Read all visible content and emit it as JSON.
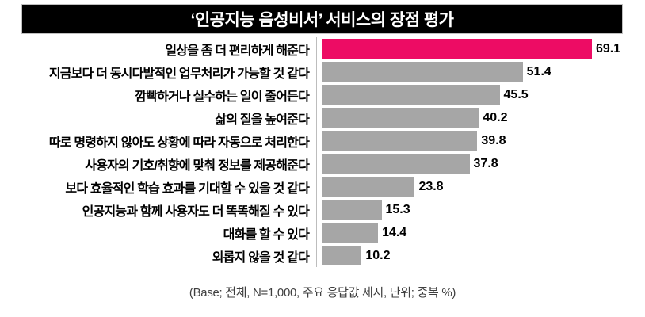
{
  "chart_data": {
    "type": "bar",
    "orientation": "horizontal",
    "title": "‘인공지능 음성비서’ 서비스의 장점 평가",
    "categories": [
      "일상을 좀 더 편리하게 해준다",
      "지금보다 더 동시다발적인 업무처리가 가능할 것 같다",
      "깜빡하거나 실수하는 일이 줄어든다",
      "삶의 질을 높여준다",
      "따로 명령하지 않아도 상황에 따라 자동으로 처리한다",
      "사용자의 기호/취향에 맞춰 정보를 제공해준다",
      "보다 효율적인 학습 효과를 기대할 수 있을 것 같다",
      "인공지능과 함께 사용자도 더 똑똑해질 수 있다",
      "대화를 할 수 있다",
      "외롭지 않을 것 같다"
    ],
    "values": [
      69.1,
      51.4,
      45.5,
      40.2,
      39.8,
      37.8,
      23.8,
      15.3,
      14.4,
      10.2
    ],
    "highlight_index": 0,
    "value_labels": true,
    "legend": false,
    "grid": false,
    "xlim": [
      0,
      82.7
    ],
    "footnote": "(Base; 전체, N=1,000, 주요 응답값 제시, 단위; 중복 %)",
    "colors": {
      "highlight": "#ED0C64",
      "default": "#A6A6A6",
      "title_bg": "#000000",
      "title_text": "#FFFFFF",
      "axis_line": "#BDBDBD"
    }
  }
}
